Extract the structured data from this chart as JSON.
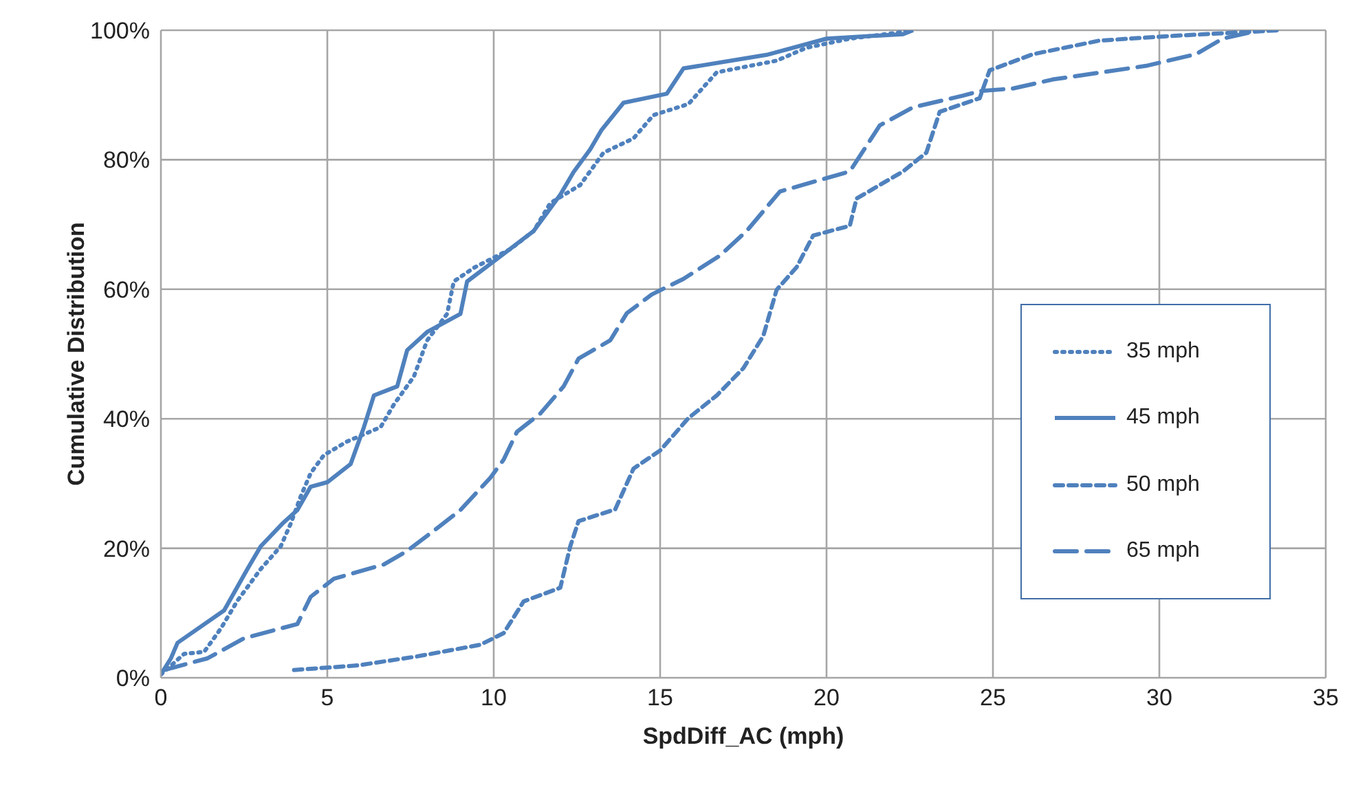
{
  "chart_data": {
    "type": "line",
    "xlabel": "SpdDiff_AC (mph)",
    "ylabel": "Cumulative Distribution",
    "xlim": [
      0,
      35
    ],
    "xticks": [
      0,
      5,
      10,
      15,
      20,
      25,
      30,
      35
    ],
    "ylim": [
      0,
      100
    ],
    "yticks": [
      {
        "value": 0,
        "label": "0%"
      },
      {
        "value": 20,
        "label": "20%"
      },
      {
        "value": 40,
        "label": "40%"
      },
      {
        "value": 60,
        "label": "60%"
      },
      {
        "value": 80,
        "label": "80%"
      },
      {
        "value": 100,
        "label": "100%"
      }
    ],
    "grid": true,
    "legend": "right",
    "marker": "none",
    "series": [
      {
        "name": "35 mph",
        "color": "#4f81bd",
        "line_style": "dotted",
        "x": [
          0,
          0.7,
          1.3,
          1.8,
          2.3,
          3.0,
          3.6,
          3.9,
          4.2,
          4.5,
          4.9,
          5.6,
          6.6,
          7.0,
          7.6,
          8.0,
          8.6,
          8.8,
          9.4,
          10.5,
          11.2,
          11.7,
          12.6,
          13.3,
          14.2,
          14.8,
          15.85,
          16.7,
          18.5,
          19.4,
          20.7,
          22.4
        ],
        "values": [
          0.5,
          3.7,
          4,
          7.6,
          11.9,
          16.8,
          20.3,
          23.8,
          28,
          31.6,
          34.4,
          36.5,
          38.7,
          42.2,
          46.5,
          52.1,
          56.2,
          61.2,
          63.3,
          66.2,
          69,
          73.3,
          76.1,
          81.1,
          83.3,
          86.9,
          88.6,
          93.5,
          95.3,
          97.3,
          98.7,
          99.8
        ]
      },
      {
        "name": "45 mph",
        "color": "#4f81bd",
        "line_style": "solid",
        "x": [
          0,
          0.3,
          0.5,
          1.9,
          2.6,
          3.0,
          3.65,
          4.1,
          4.5,
          5.0,
          5.7,
          6.1,
          6.4,
          7.1,
          7.4,
          8.0,
          9.0,
          9.2,
          10.1,
          11.2,
          11.6,
          12.0,
          12.4,
          12.9,
          13.24,
          13.9,
          15.2,
          15.7,
          18.2,
          20,
          22.3,
          22.6
        ],
        "values": [
          0.5,
          3,
          5.4,
          10.4,
          16.8,
          20.3,
          23.8,
          25.9,
          29.5,
          30.2,
          33,
          38.7,
          43.6,
          45,
          50.6,
          53.4,
          56.2,
          61.2,
          64.7,
          69,
          71.8,
          74.6,
          78.1,
          81.6,
          84.6,
          88.8,
          90.2,
          94.1,
          96.2,
          98.7,
          99.4,
          100
        ]
      },
      {
        "name": "50 mph",
        "color": "#4f81bd",
        "line_style": "dashed",
        "x": [
          4.0,
          5.9,
          7.7,
          9.6,
          10.3,
          10.9,
          12.0,
          12.3,
          12.55,
          13.65,
          14.2,
          15.0,
          15.85,
          16.7,
          17.5,
          18.1,
          18.5,
          19.1,
          19.6,
          20.7,
          20.9,
          22.3,
          23.0,
          23.4,
          24.6,
          24.9,
          26.2,
          28.2,
          30.3,
          33.6
        ],
        "values": [
          1.2,
          1.9,
          3.3,
          5.1,
          6.9,
          11.8,
          13.9,
          20.3,
          24.2,
          26,
          32.3,
          35.1,
          40.1,
          43.6,
          47.8,
          52.8,
          59.9,
          63.4,
          68.3,
          69.8,
          74,
          78.2,
          81.1,
          87.4,
          89.5,
          93.8,
          96.3,
          98.4,
          99.1,
          100
        ]
      },
      {
        "name": "65 mph",
        "color": "#4f81bd",
        "line_style": "dashed",
        "x": [
          0.1,
          1.4,
          2.5,
          4.1,
          4.5,
          5.2,
          6.7,
          7.4,
          8.3,
          9.0,
          9.9,
          10.3,
          10.7,
          11.4,
          12.1,
          12.55,
          13.5,
          14.0,
          14.75,
          15.7,
          16.8,
          17.6,
          18.6,
          20.7,
          21.6,
          22.6,
          24.1,
          24.6,
          25.6,
          26.8,
          29.6,
          31.1,
          31.9,
          33.0
        ],
        "values": [
          1.2,
          3.0,
          6.1,
          8.3,
          12.5,
          15.3,
          17.5,
          19.6,
          23.1,
          25.9,
          30.9,
          33.7,
          38,
          40.8,
          45,
          49.3,
          52.1,
          56.3,
          59.2,
          61.6,
          65.2,
          69,
          75.1,
          78.2,
          85.3,
          88.1,
          89.9,
          90.6,
          91,
          92.4,
          94.5,
          96.3,
          98.7,
          100
        ]
      }
    ]
  }
}
